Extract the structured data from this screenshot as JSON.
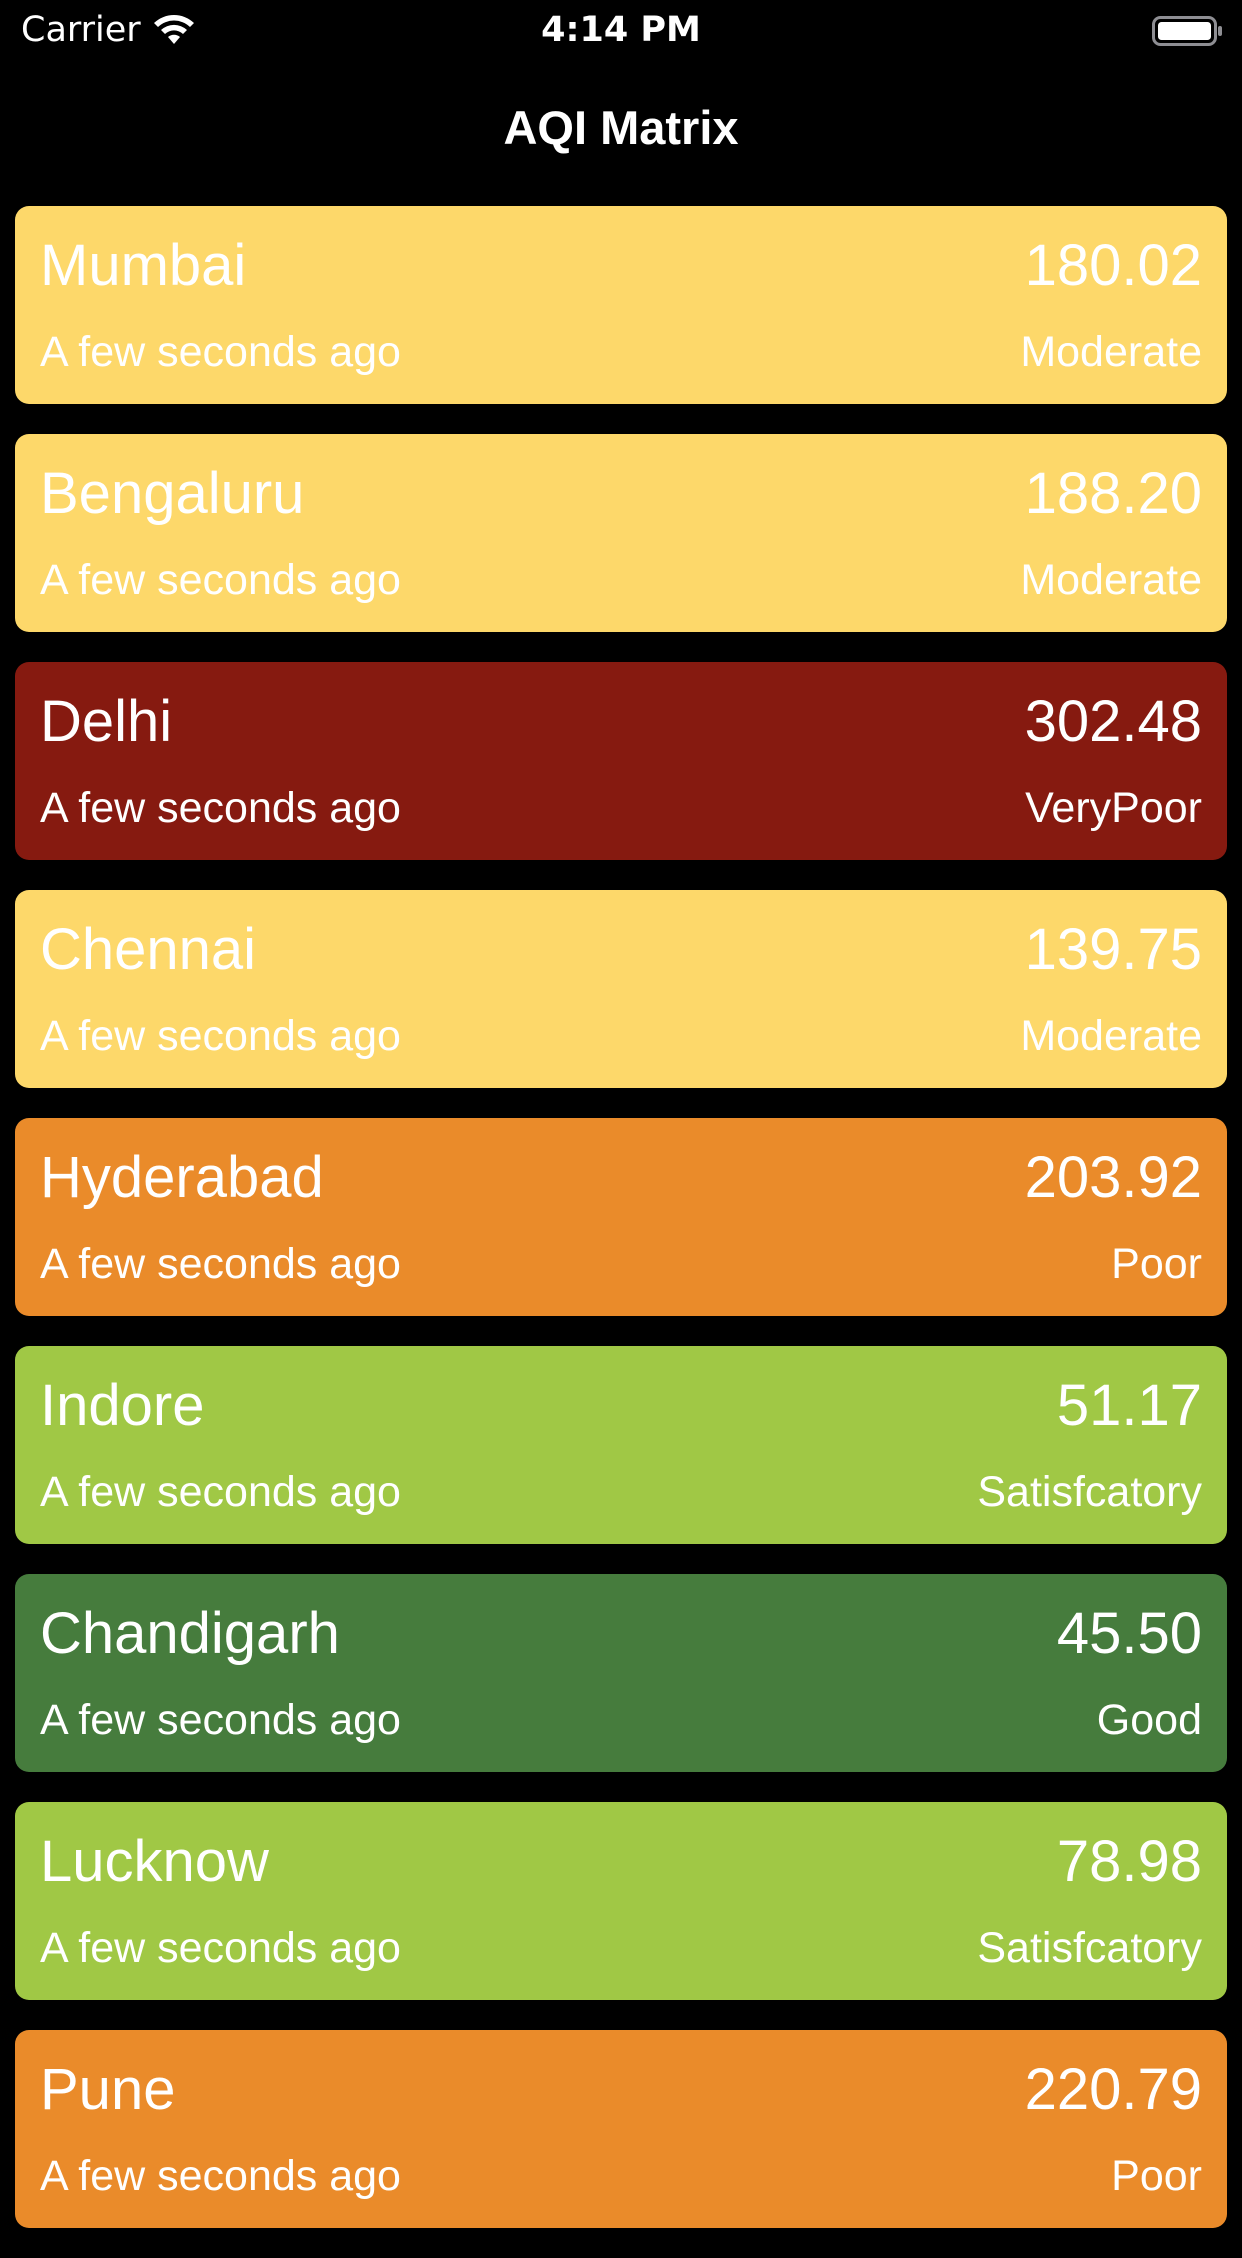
{
  "status_bar": {
    "carrier": "Carrier",
    "time": "4:14 PM",
    "wifi_icon": "wifi-icon",
    "battery_icon": "battery-icon"
  },
  "nav": {
    "title": "AQI Matrix"
  },
  "cities": [
    {
      "city": "Mumbai",
      "aqi": "180.02",
      "updated": "A few seconds ago",
      "category": "Moderate",
      "color": "#FDD86A"
    },
    {
      "city": "Bengaluru",
      "aqi": "188.20",
      "updated": "A few seconds ago",
      "category": "Moderate",
      "color": "#FDD86A"
    },
    {
      "city": "Delhi",
      "aqi": "302.48",
      "updated": "A few seconds ago",
      "category": "VeryPoor",
      "color": "#861A10"
    },
    {
      "city": "Chennai",
      "aqi": "139.75",
      "updated": "A few seconds ago",
      "category": "Moderate",
      "color": "#FDD86A"
    },
    {
      "city": "Hyderabad",
      "aqi": "203.92",
      "updated": "A few seconds ago",
      "category": "Poor",
      "color": "#EA8B2A"
    },
    {
      "city": "Indore",
      "aqi": "51.17",
      "updated": "A few seconds ago",
      "category": "Satisfcatory",
      "color": "#A0C845"
    },
    {
      "city": "Chandigarh",
      "aqi": "45.50",
      "updated": "A few seconds ago",
      "category": "Good",
      "color": "#467C3D"
    },
    {
      "city": "Lucknow",
      "aqi": "78.98",
      "updated": "A few seconds ago",
      "category": "Satisfcatory",
      "color": "#A0C845"
    },
    {
      "city": "Pune",
      "aqi": "220.79",
      "updated": "A few seconds ago",
      "category": "Poor",
      "color": "#EA8B2A"
    }
  ]
}
